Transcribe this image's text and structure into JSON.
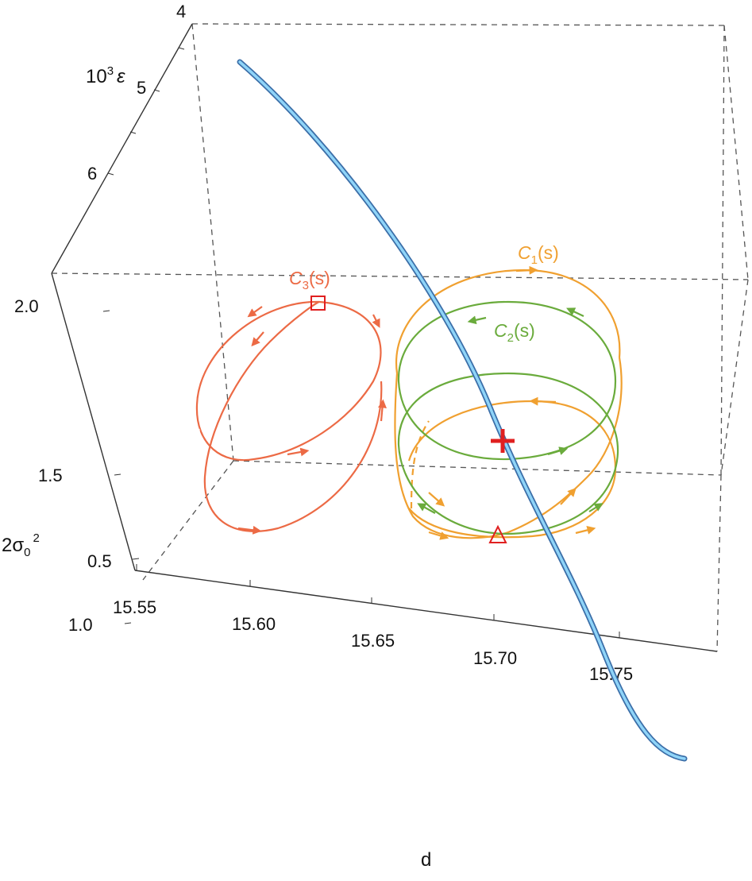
{
  "chart_data": {
    "type": "line",
    "title": "",
    "axes": {
      "x": {
        "label": "d",
        "ticks": [
          "15.55",
          "15.60",
          "15.65",
          "15.70",
          "15.75"
        ],
        "range": [
          15.53,
          15.8
        ]
      },
      "y": {
        "label_html_parts": [
          "10",
          "3",
          "ε"
        ],
        "ticks": [
          "4",
          "5",
          "6"
        ],
        "range": [
          4,
          7
        ]
      },
      "z": {
        "label_parts": [
          "2σ",
          "0",
          "2"
        ],
        "ticks": [
          "0.5",
          "1.0",
          "1.5",
          "2.0"
        ],
        "range": [
          0.4,
          2.2
        ]
      }
    },
    "series": [
      {
        "name": "",
        "kind": "curve",
        "color": "#6ec1f0",
        "edge_color": "#3b6ea8"
      },
      {
        "name": "C1(s)",
        "label_main": "C",
        "label_sub": "1",
        "label_tail": "(s)",
        "kind": "closed-loop",
        "color": "#f0a030"
      },
      {
        "name": "C2(s)",
        "label_main": "C",
        "label_sub": "2",
        "label_tail": "(s)",
        "kind": "closed-loop",
        "color": "#6aab3c"
      },
      {
        "name": "C3(s)",
        "label_main": "C",
        "label_sub": "3",
        "label_tail": "(s)",
        "kind": "closed-loop",
        "color": "#ec6a45"
      }
    ],
    "markers": [
      {
        "name": "square",
        "shape": "square",
        "color": "#e02020"
      },
      {
        "name": "triangle",
        "shape": "triangle",
        "color": "#e02020"
      },
      {
        "name": "plus",
        "shape": "plus",
        "color": "#e02020"
      }
    ],
    "grid": false,
    "box": true
  }
}
